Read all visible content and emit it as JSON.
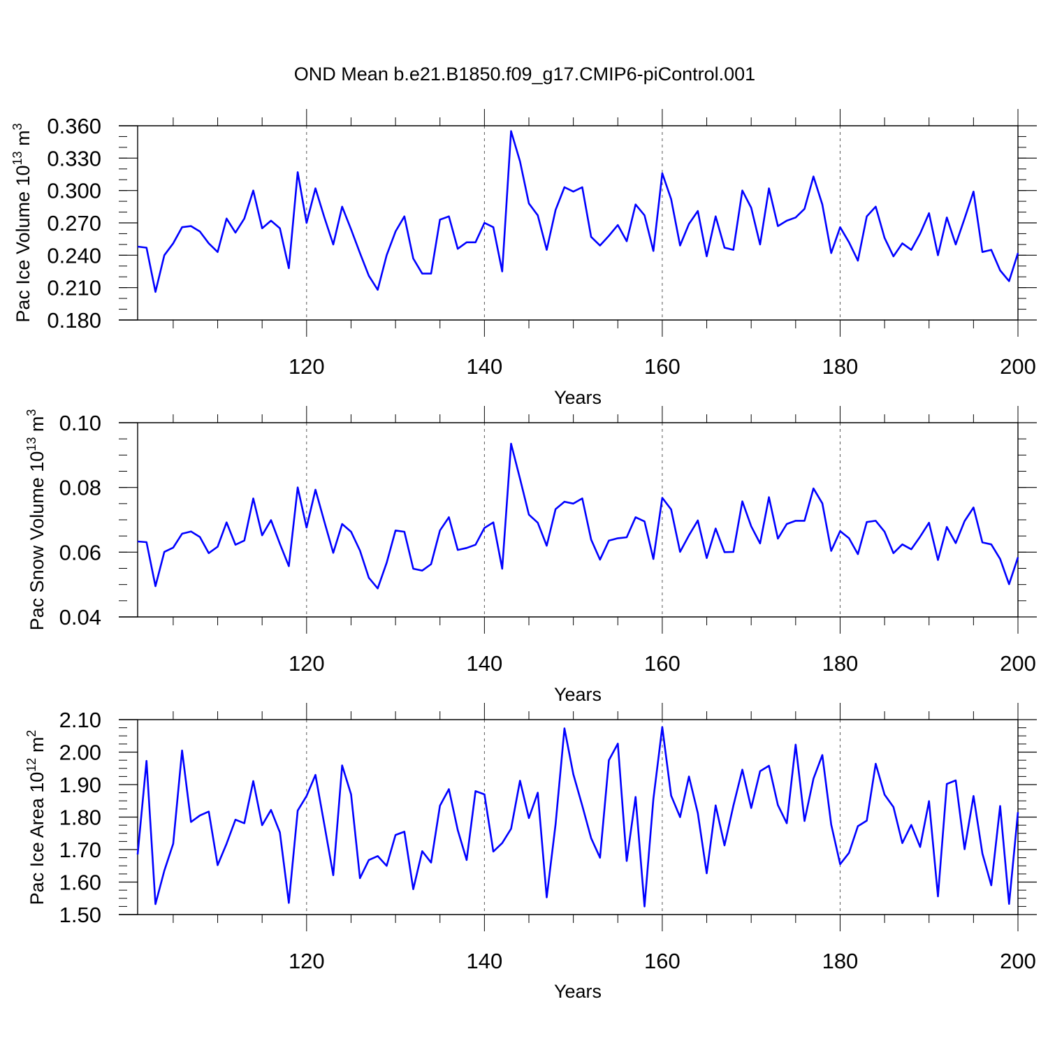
{
  "figure": {
    "title": "OND Mean b.e21.B1850.f09_g17.CMIP6-piControl.001"
  },
  "colors": {
    "line": "#0000ff",
    "axis": "#000000",
    "grid": "#555555"
  },
  "chart_data": [
    {
      "type": "line",
      "ylabel_main": "Pac Ice Volume 10",
      "ylabel_exp": "13",
      "ylabel_unit": " m",
      "ylabel_unit_exp": "3",
      "xlabel": "Years",
      "xlim": [
        101,
        200
      ],
      "ylim": [
        0.18,
        0.36
      ],
      "xticks": [
        120,
        140,
        160,
        180,
        200
      ],
      "xtick_labels": [
        "120",
        "140",
        "160",
        "180",
        "200"
      ],
      "yticks": [
        0.18,
        0.21,
        0.24,
        0.27,
        0.3,
        0.33,
        0.36
      ],
      "ytick_labels": [
        "0.180",
        "0.210",
        "0.240",
        "0.270",
        "0.300",
        "0.330",
        "0.360"
      ],
      "yminor": 0.01,
      "grid_x": [
        120,
        140,
        160,
        180
      ],
      "x_start": 101,
      "values": [
        0.248,
        0.247,
        0.206,
        0.24,
        0.251,
        0.266,
        0.267,
        0.262,
        0.251,
        0.243,
        0.274,
        0.261,
        0.274,
        0.3,
        0.265,
        0.272,
        0.265,
        0.228,
        0.317,
        0.27,
        0.302,
        0.275,
        0.25,
        0.285,
        0.264,
        0.242,
        0.221,
        0.208,
        0.24,
        0.262,
        0.276,
        0.237,
        0.223,
        0.223,
        0.273,
        0.276,
        0.246,
        0.252,
        0.252,
        0.27,
        0.266,
        0.225,
        0.355,
        0.327,
        0.288,
        0.277,
        0.245,
        0.282,
        0.303,
        0.299,
        0.303,
        0.257,
        0.249,
        0.258,
        0.268,
        0.253,
        0.287,
        0.277,
        0.244,
        0.316,
        0.292,
        0.249,
        0.269,
        0.281,
        0.239,
        0.276,
        0.247,
        0.245,
        0.3,
        0.284,
        0.25,
        0.302,
        0.267,
        0.272,
        0.275,
        0.283,
        0.313,
        0.287,
        0.242,
        0.266,
        0.252,
        0.235,
        0.276,
        0.285,
        0.256,
        0.239,
        0.251,
        0.245,
        0.26,
        0.279,
        0.24,
        0.275,
        0.25,
        0.274,
        0.299,
        0.243,
        0.245,
        0.226,
        0.216,
        0.242
      ]
    },
    {
      "type": "line",
      "ylabel_main": "Pac Snow Volume 10",
      "ylabel_exp": "13",
      "ylabel_unit": " m",
      "ylabel_unit_exp": "3",
      "xlabel": "Years",
      "xlim": [
        101,
        200
      ],
      "ylim": [
        0.04,
        0.1
      ],
      "xticks": [
        120,
        140,
        160,
        180,
        200
      ],
      "xtick_labels": [
        "120",
        "140",
        "160",
        "180",
        "200"
      ],
      "yticks": [
        0.04,
        0.06,
        0.08,
        0.1
      ],
      "ytick_labels": [
        "0.04",
        "0.06",
        "0.08",
        "0.10"
      ],
      "yminor": 0.005,
      "grid_x": [
        120,
        140,
        160,
        180
      ],
      "x_start": 101,
      "values": [
        0.0633,
        0.0631,
        0.0495,
        0.0601,
        0.0614,
        0.0657,
        0.0664,
        0.0647,
        0.0597,
        0.0617,
        0.0692,
        0.0623,
        0.0636,
        0.0766,
        0.0652,
        0.0699,
        0.0626,
        0.0557,
        0.08,
        0.0676,
        0.0793,
        0.0694,
        0.0598,
        0.0687,
        0.0663,
        0.0605,
        0.0521,
        0.0488,
        0.0567,
        0.0667,
        0.0663,
        0.0549,
        0.0543,
        0.0563,
        0.0667,
        0.0708,
        0.0607,
        0.0613,
        0.0623,
        0.0675,
        0.0692,
        0.0549,
        0.0935,
        0.0827,
        0.0716,
        0.0691,
        0.062,
        0.0733,
        0.0756,
        0.075,
        0.0766,
        0.0639,
        0.0577,
        0.0636,
        0.0643,
        0.0646,
        0.0708,
        0.0695,
        0.0579,
        0.0768,
        0.0732,
        0.0601,
        0.0652,
        0.0698,
        0.0582,
        0.0673,
        0.06,
        0.0601,
        0.0757,
        0.068,
        0.0627,
        0.077,
        0.0642,
        0.0687,
        0.0697,
        0.0697,
        0.0797,
        0.0751,
        0.0604,
        0.0665,
        0.0643,
        0.0594,
        0.0693,
        0.0697,
        0.0663,
        0.0597,
        0.0624,
        0.0609,
        0.0648,
        0.0691,
        0.0576,
        0.0678,
        0.0628,
        0.0696,
        0.0738,
        0.063,
        0.0624,
        0.0579,
        0.0501,
        0.0584
      ]
    },
    {
      "type": "line",
      "ylabel_main": "Pac Ice Area 10",
      "ylabel_exp": "12",
      "ylabel_unit": " m",
      "ylabel_unit_exp": "2",
      "xlabel": "Years",
      "xlim": [
        101,
        200
      ],
      "ylim": [
        1.5,
        2.1
      ],
      "xticks": [
        120,
        140,
        160,
        180,
        200
      ],
      "xtick_labels": [
        "120",
        "140",
        "160",
        "180",
        "200"
      ],
      "yticks": [
        1.5,
        1.6,
        1.7,
        1.8,
        1.9,
        2.0,
        2.1
      ],
      "ytick_labels": [
        "1.50",
        "1.60",
        "1.70",
        "1.80",
        "1.90",
        "2.00",
        "2.10"
      ],
      "yminor": 0.025,
      "grid_x": [
        120,
        140,
        160,
        180
      ],
      "x_start": 101,
      "values": [
        1.685,
        1.973,
        1.532,
        1.635,
        1.718,
        2.005,
        1.785,
        1.805,
        1.817,
        1.652,
        1.718,
        1.792,
        1.781,
        1.911,
        1.775,
        1.822,
        1.753,
        1.536,
        1.82,
        1.865,
        1.93,
        1.776,
        1.621,
        1.959,
        1.87,
        1.612,
        1.668,
        1.68,
        1.65,
        1.745,
        1.755,
        1.578,
        1.695,
        1.66,
        1.835,
        1.886,
        1.76,
        1.668,
        1.88,
        1.87,
        1.694,
        1.72,
        1.764,
        1.912,
        1.797,
        1.875,
        1.553,
        1.778,
        2.073,
        1.932,
        1.835,
        1.735,
        1.675,
        1.975,
        2.026,
        1.665,
        1.862,
        1.525,
        1.856,
        2.077,
        1.866,
        1.8,
        1.925,
        1.812,
        1.627,
        1.836,
        1.713,
        1.835,
        1.946,
        1.828,
        1.941,
        1.958,
        1.837,
        1.781,
        2.023,
        1.788,
        1.918,
        1.991,
        1.777,
        1.655,
        1.69,
        1.772,
        1.789,
        1.964,
        1.869,
        1.831,
        1.72,
        1.776,
        1.708,
        1.849,
        1.556,
        1.902,
        1.913,
        1.701,
        1.865,
        1.688,
        1.59,
        1.834,
        1.533,
        1.815
      ]
    }
  ]
}
